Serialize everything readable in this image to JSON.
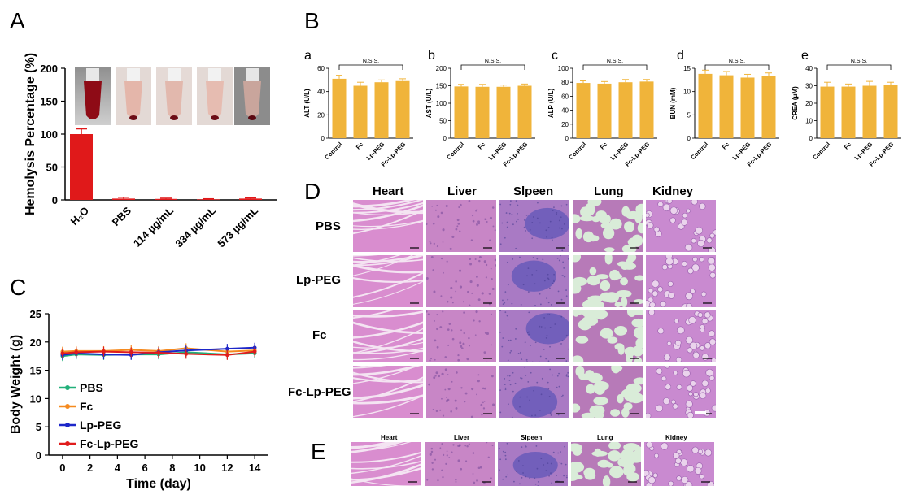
{
  "panels": {
    "A": "A",
    "B": "B",
    "C": "C",
    "D": "D",
    "E": "E",
    "sub": [
      "a",
      "b",
      "c",
      "d",
      "e"
    ]
  },
  "colors": {
    "bar_red": "#e0191a",
    "bar_gold": "#f0b43a",
    "pbs": "#22b07a",
    "fc": "#f58a1f",
    "lp_peg": "#1d27c9",
    "fc_lp_peg": "#e01c1c",
    "tissue_pink": "#d79ad1",
    "tissue_purple": "#8a6cc6",
    "lung_bg": "#d9ecd8"
  },
  "chart_data": [
    {
      "id": "A",
      "type": "bar",
      "title": "",
      "xlabel": "",
      "ylabel": "Hemolysis Percentage (%)",
      "ylim": [
        0,
        200
      ],
      "yticks": [
        0,
        50,
        100,
        150,
        200
      ],
      "categories": [
        "H₂O",
        "PBS",
        "114 µg/mL",
        "334 µg/mL",
        "573 µg/mL"
      ],
      "values": [
        100,
        2,
        1.5,
        0.8,
        2
      ],
      "errors": [
        8,
        2,
        1,
        0.8,
        1
      ]
    },
    {
      "id": "B-a",
      "type": "bar",
      "ylabel": "ALT (U/L)",
      "ylim": [
        0,
        60
      ],
      "yticks": [
        0,
        20,
        40,
        60
      ],
      "categories": [
        "Control",
        "Fc",
        "Lp-PEG",
        "Fc-Lp-PEG"
      ],
      "values": [
        51,
        45,
        48,
        49
      ],
      "errors": [
        3,
        3,
        2,
        2
      ],
      "annotation": "N.S.S."
    },
    {
      "id": "B-b",
      "type": "bar",
      "ylabel": "AST (U/L)",
      "ylim": [
        0,
        200
      ],
      "yticks": [
        0,
        50,
        100,
        150,
        200
      ],
      "categories": [
        "Control",
        "Fc",
        "Lp-PEG",
        "Fc-Lp-PEG"
      ],
      "values": [
        148,
        147,
        147,
        150
      ],
      "errors": [
        6,
        7,
        5,
        5
      ],
      "annotation": "N.S.S."
    },
    {
      "id": "B-c",
      "type": "bar",
      "ylabel": "ALP (U/L)",
      "ylim": [
        0,
        100
      ],
      "yticks": [
        0,
        20,
        40,
        60,
        80,
        100
      ],
      "categories": [
        "Control",
        "Fc",
        "Lp-PEG",
        "Fc-Lp-PEG"
      ],
      "values": [
        79,
        78,
        80,
        81
      ],
      "errors": [
        3,
        3,
        4,
        3
      ],
      "annotation": "N.S.S."
    },
    {
      "id": "B-d",
      "type": "bar",
      "ylabel": "BUN (mM)",
      "ylim": [
        0,
        15
      ],
      "yticks": [
        0,
        5,
        10,
        15
      ],
      "categories": [
        "Control",
        "Fc",
        "Lp-PEG",
        "Fc-Lp-PEG"
      ],
      "values": [
        13.8,
        13.5,
        13.0,
        13.4
      ],
      "errors": [
        0.8,
        0.8,
        0.7,
        0.6
      ],
      "annotation": "N.S.S."
    },
    {
      "id": "B-e",
      "type": "bar",
      "ylabel": "CREA (μM)",
      "ylim": [
        0,
        40
      ],
      "yticks": [
        0,
        10,
        20,
        30,
        40
      ],
      "categories": [
        "Control",
        "Fc",
        "Lp-PEG",
        "Fc-Lp-PEG"
      ],
      "values": [
        29.5,
        29.5,
        30,
        30.5
      ],
      "errors": [
        2.5,
        1.5,
        2.5,
        1.5
      ],
      "annotation": "N.S.S."
    },
    {
      "id": "C",
      "type": "line",
      "xlabel": "Time (day)",
      "ylabel": "Body Weight (g)",
      "xlim": [
        -1,
        15
      ],
      "ylim": [
        0,
        25
      ],
      "xticks": [
        0,
        2,
        4,
        6,
        8,
        10,
        12,
        14
      ],
      "yticks": [
        0,
        5,
        10,
        15,
        20,
        25
      ],
      "x": [
        0,
        1,
        3,
        5,
        7,
        9,
        12,
        14
      ],
      "legend_position": "bottom-left",
      "series": [
        {
          "name": "PBS",
          "values": [
            17.5,
            17.8,
            17.7,
            17.8,
            17.8,
            18.2,
            17.8,
            18.0
          ]
        },
        {
          "name": "Fc",
          "values": [
            18.3,
            18.4,
            18.4,
            18.6,
            18.4,
            18.9,
            18.3,
            18.5
          ]
        },
        {
          "name": "Lp-PEG",
          "values": [
            17.7,
            18.0,
            17.8,
            17.7,
            18.2,
            18.5,
            18.8,
            19.0
          ]
        },
        {
          "name": "Fc-Lp-PEG",
          "values": [
            18.0,
            18.2,
            18.3,
            18.2,
            18.1,
            17.9,
            17.7,
            18.3
          ]
        }
      ]
    }
  ],
  "histology": {
    "columns": [
      "Heart",
      "Liver",
      "Slpeen",
      "Lung",
      "Kidney"
    ],
    "rows": [
      "PBS",
      "Lp-PEG",
      "Fc",
      "Fc-Lp-PEG"
    ],
    "e_columns": [
      "Heart",
      "Liver",
      "Slpeen",
      "Lung",
      "Kidney"
    ]
  }
}
